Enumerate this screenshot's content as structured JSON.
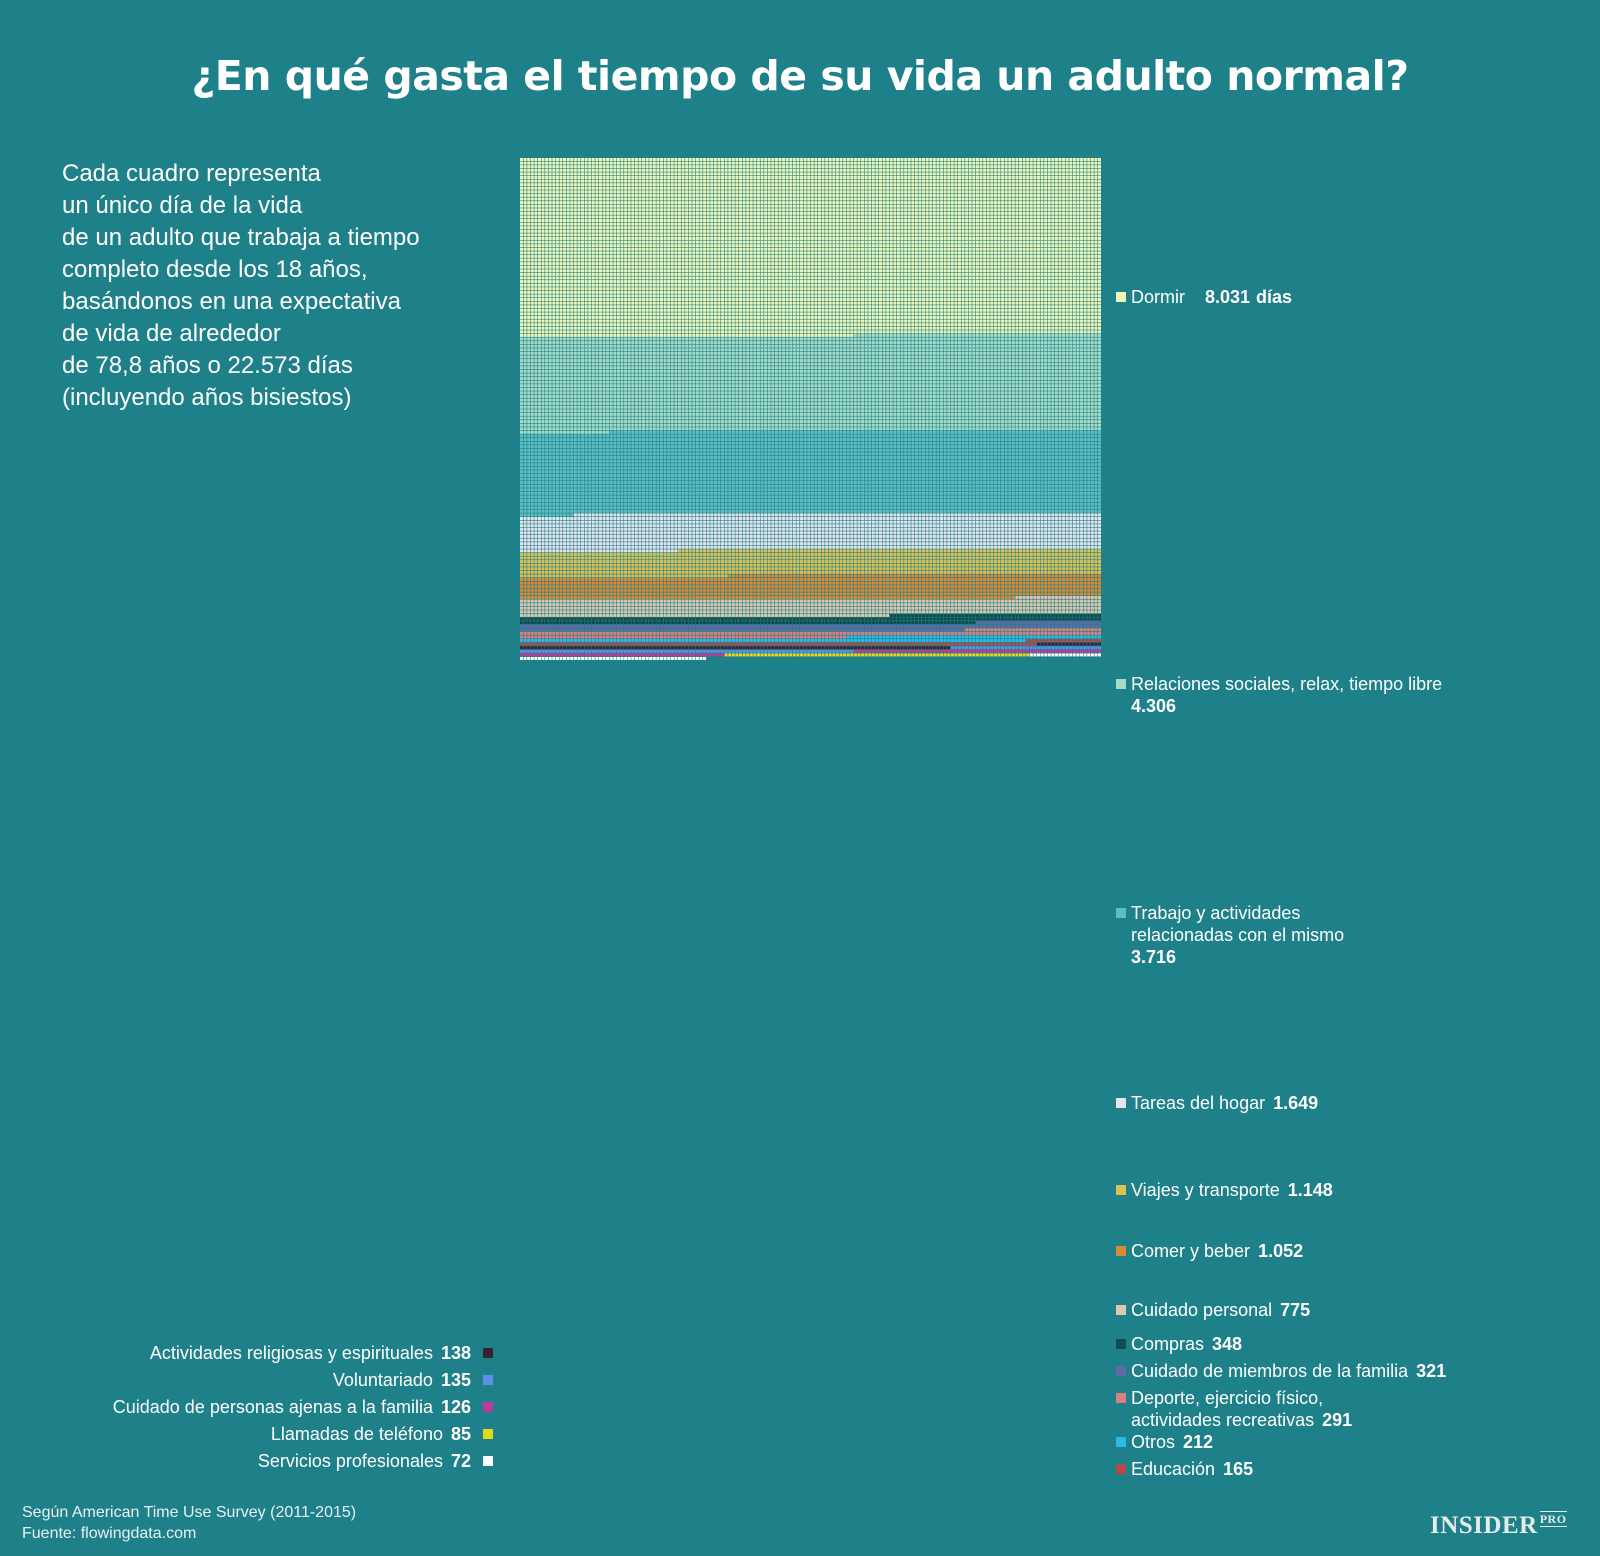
{
  "title": "¿En qué gasta el tiempo de su vida un adulto normal?",
  "intro": [
    "Cada cuadro representa",
    "un único día de la vida",
    "de un adulto que trabaja a tiempo",
    "completo desde los 18 años,",
    "basándonos en una expectativa",
    "de vida de alrededor",
    "de 78,8 años o 22.573 días",
    "(incluyendo años bisiestos)"
  ],
  "chart_data": {
    "type": "waffle",
    "total_days": 22573,
    "categories": [
      {
        "name": "Dormir",
        "value": 8031,
        "label": "8.031",
        "unit": "días",
        "color": "#f2f7b8"
      },
      {
        "name": "Relaciones sociales, relax, tiempo libre",
        "value": 4306,
        "label": "4.306",
        "color": "#a6dcc6"
      },
      {
        "name": "Trabajo y actividades relacionadas con el mismo",
        "value": 3716,
        "label": "3.716",
        "color": "#5cbec2"
      },
      {
        "name": "Tareas del hogar",
        "value": 1649,
        "label": "1.649",
        "color": "#e7e4ed"
      },
      {
        "name": "Viajes y transporte",
        "value": 1148,
        "label": "1.148",
        "color": "#dcc256"
      },
      {
        "name": "Comer y beber",
        "value": 1052,
        "label": "1.052",
        "color": "#d98a34"
      },
      {
        "name": "Cuidado personal",
        "value": 775,
        "label": "775",
        "color": "#ddc8b0"
      },
      {
        "name": "Compras",
        "value": 348,
        "label": "348",
        "color": "#0f4c4c"
      },
      {
        "name": "Cuidado de miembros de la familia",
        "value": 321,
        "label": "321",
        "color": "#5f6aa6"
      },
      {
        "name": "Deporte, ejercicio físico, actividades recreativas",
        "value": 291,
        "label": "291",
        "color": "#de7f7f"
      },
      {
        "name": "Otros",
        "value": 212,
        "label": "212",
        "color": "#2db9e6"
      },
      {
        "name": "Educación",
        "value": 165,
        "label": "165",
        "color": "#b24a4a"
      },
      {
        "name": "Actividades religiosas y espirituales",
        "value": 138,
        "label": "138",
        "color": "#3a2233"
      },
      {
        "name": "Voluntariado",
        "value": 135,
        "label": "135",
        "color": "#5f8ee6"
      },
      {
        "name": "Cuidado de personas ajenas a la familia",
        "value": 126,
        "label": "126",
        "color": "#c0399a"
      },
      {
        "name": "Llamadas de teléfono",
        "value": 85,
        "label": "85",
        "color": "#e6d81c"
      },
      {
        "name": "Servicios profesionales",
        "value": 72,
        "label": "72",
        "color": "#ffffff"
      }
    ],
    "legend_right": [
      {
        "lines": [
          "Dormir"
        ],
        "label": "8.031",
        "unit": "días"
      },
      {
        "lines": [
          "Relaciones sociales, relax, tiempo libre"
        ],
        "label": "4.306"
      },
      {
        "lines": [
          "Trabajo y actividades",
          "relacionadas con el mismo"
        ],
        "label": "3.716"
      },
      {
        "lines": [
          "Tareas del hogar"
        ],
        "label": "1.649"
      },
      {
        "lines": [
          "Viajes y transporte"
        ],
        "label": "1.148"
      },
      {
        "lines": [
          "Comer y beber"
        ],
        "label": "1.052"
      },
      {
        "lines": [
          "Cuidado personal"
        ],
        "label": "775"
      },
      {
        "lines": [
          "Compras"
        ],
        "label": "348"
      },
      {
        "lines": [
          "Cuidado de miembros de la familia"
        ],
        "label": "321"
      },
      {
        "lines": [
          "Deporte, ejercicio físico,",
          "actividades recreativas"
        ],
        "label": "291"
      },
      {
        "lines": [
          "Otros"
        ],
        "label": "212"
      },
      {
        "lines": [
          "Educación"
        ],
        "label": "165"
      }
    ],
    "legend_left": [
      {
        "text": "Actividades religiosas y espirituales",
        "label": "138"
      },
      {
        "text": "Voluntariado",
        "label": "135"
      },
      {
        "text": "Cuidado de personas ajenas a la familia",
        "label": "126"
      },
      {
        "text": "Llamadas de teléfono",
        "label": "85"
      },
      {
        "text": "Servicios profesionales",
        "label": "72"
      }
    ]
  },
  "footer": [
    "Según American Time Use Survey (2011-2015)",
    "Fuente: flowingdata.com"
  ],
  "logo": {
    "main": "INSIDER",
    "badge": "PRO"
  }
}
